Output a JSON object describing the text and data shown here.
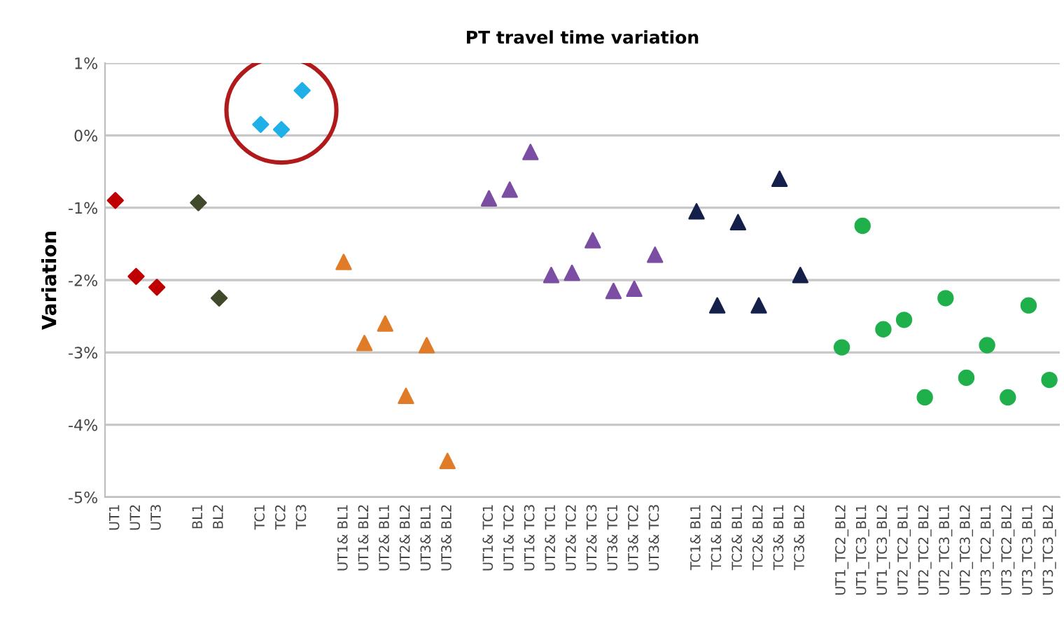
{
  "chart_data": {
    "type": "scatter",
    "title": "PT travel time variation",
    "ylabel": "Variation",
    "categories": [
      "UT1",
      "UT2",
      "UT3",
      null,
      "BL1",
      "BL2",
      null,
      "TC1",
      "TC2",
      "TC3",
      null,
      "UT1& BL1",
      "UT1& BL2",
      "UT2& BL1",
      "UT2& BL2",
      "UT3& BL1",
      "UT3& BL2",
      null,
      "UT1& TC1",
      "UT1& TC2",
      "UT1& TC3",
      "UT2& TC1",
      "UT2& TC2",
      "UT2& TC3",
      "UT3& TC1",
      "UT3& TC2",
      "UT3& TC3",
      null,
      "TC1& BL1",
      "TC1& BL2",
      "TC2& BL1",
      "TC2& BL2",
      "TC3& BL1",
      "TC3& BL2",
      null,
      "UT1_TC2_BL2",
      "UT1_TC3_BL1",
      "UT1_TC3_BL2",
      "UT2_TC2_BL1",
      "UT2_TC2_BL2",
      "UT2_TC3_BL1",
      "UT2_TC3_BL2",
      "UT3_TC2_BL1",
      "UT3_TC2_BL2",
      "UT3_TC3_BL1",
      "UT3_TC3_BL2"
    ],
    "series": [
      {
        "color": "#c00000",
        "marker": "diamond",
        "values": [
          -0.9,
          -1.95,
          -2.1,
          null,
          null,
          null,
          null,
          null,
          null,
          null,
          null,
          null,
          null,
          null,
          null,
          null,
          null,
          null,
          null,
          null,
          null,
          null,
          null,
          null,
          null,
          null,
          null,
          null,
          null,
          null,
          null,
          null,
          null,
          null,
          null,
          null,
          null,
          null,
          null,
          null,
          null,
          null,
          null,
          null,
          null,
          null
        ]
      },
      {
        "color": "#404a2a",
        "marker": "diamond",
        "values": [
          null,
          null,
          null,
          null,
          -0.93,
          -2.25,
          null,
          null,
          null,
          null,
          null,
          null,
          null,
          null,
          null,
          null,
          null,
          null,
          null,
          null,
          null,
          null,
          null,
          null,
          null,
          null,
          null,
          null,
          null,
          null,
          null,
          null,
          null,
          null,
          null,
          null,
          null,
          null,
          null,
          null,
          null,
          null,
          null,
          null,
          null,
          null
        ]
      },
      {
        "color": "#20b0e8",
        "marker": "diamond",
        "values": [
          null,
          null,
          null,
          null,
          null,
          null,
          null,
          0.15,
          0.08,
          0.62,
          null,
          null,
          null,
          null,
          null,
          null,
          null,
          null,
          null,
          null,
          null,
          null,
          null,
          null,
          null,
          null,
          null,
          null,
          null,
          null,
          null,
          null,
          null,
          null,
          null,
          null,
          null,
          null,
          null,
          null,
          null,
          null,
          null,
          null,
          null,
          null
        ]
      },
      {
        "color": "#e07b28",
        "marker": "triangle",
        "values": [
          null,
          null,
          null,
          null,
          null,
          null,
          null,
          null,
          null,
          null,
          null,
          -1.75,
          -2.87,
          -2.6,
          -3.6,
          -2.9,
          -4.5,
          null,
          null,
          null,
          null,
          null,
          null,
          null,
          null,
          null,
          null,
          null,
          null,
          null,
          null,
          null,
          null,
          null,
          null,
          null,
          null,
          null,
          null,
          null,
          null,
          null,
          null,
          null,
          null,
          null
        ]
      },
      {
        "color": "#7b4ea3",
        "marker": "triangle",
        "values": [
          null,
          null,
          null,
          null,
          null,
          null,
          null,
          null,
          null,
          null,
          null,
          null,
          null,
          null,
          null,
          null,
          null,
          null,
          -0.87,
          -0.75,
          -0.23,
          -1.93,
          -1.9,
          -1.45,
          -2.15,
          -2.12,
          -1.65,
          null,
          null,
          null,
          null,
          null,
          null,
          null,
          null,
          null,
          null,
          null,
          null,
          null,
          null,
          null,
          null,
          null,
          null,
          null
        ]
      },
      {
        "color": "#15204a",
        "marker": "triangle",
        "values": [
          null,
          null,
          null,
          null,
          null,
          null,
          null,
          null,
          null,
          null,
          null,
          null,
          null,
          null,
          null,
          null,
          null,
          null,
          null,
          null,
          null,
          null,
          null,
          null,
          null,
          null,
          null,
          null,
          -1.05,
          -2.35,
          -1.2,
          -2.35,
          -0.6,
          -1.93,
          null,
          null,
          null,
          null,
          null,
          null,
          null,
          null,
          null,
          null,
          null,
          null
        ]
      },
      {
        "color": "#1fb04c",
        "marker": "circle",
        "values": [
          null,
          null,
          null,
          null,
          null,
          null,
          null,
          null,
          null,
          null,
          null,
          null,
          null,
          null,
          null,
          null,
          null,
          null,
          null,
          null,
          null,
          null,
          null,
          null,
          null,
          null,
          null,
          null,
          null,
          null,
          null,
          null,
          null,
          null,
          null,
          -2.93,
          -1.25,
          -2.68,
          -2.55,
          -3.62,
          -2.25,
          -3.35,
          -2.9,
          -3.62,
          -2.35,
          -3.38
        ]
      }
    ],
    "ylim": [
      -5,
      1
    ],
    "yticks": [
      {
        "value": -5,
        "label": "-5%"
      },
      {
        "value": -4,
        "label": "-4%"
      },
      {
        "value": -3,
        "label": "-3%"
      },
      {
        "value": -2,
        "label": "-2%"
      },
      {
        "value": -1,
        "label": "-1%"
      },
      {
        "value": 0,
        "label": "0%"
      },
      {
        "value": 1,
        "label": "1%"
      }
    ],
    "grid": "y",
    "legend": false
  }
}
